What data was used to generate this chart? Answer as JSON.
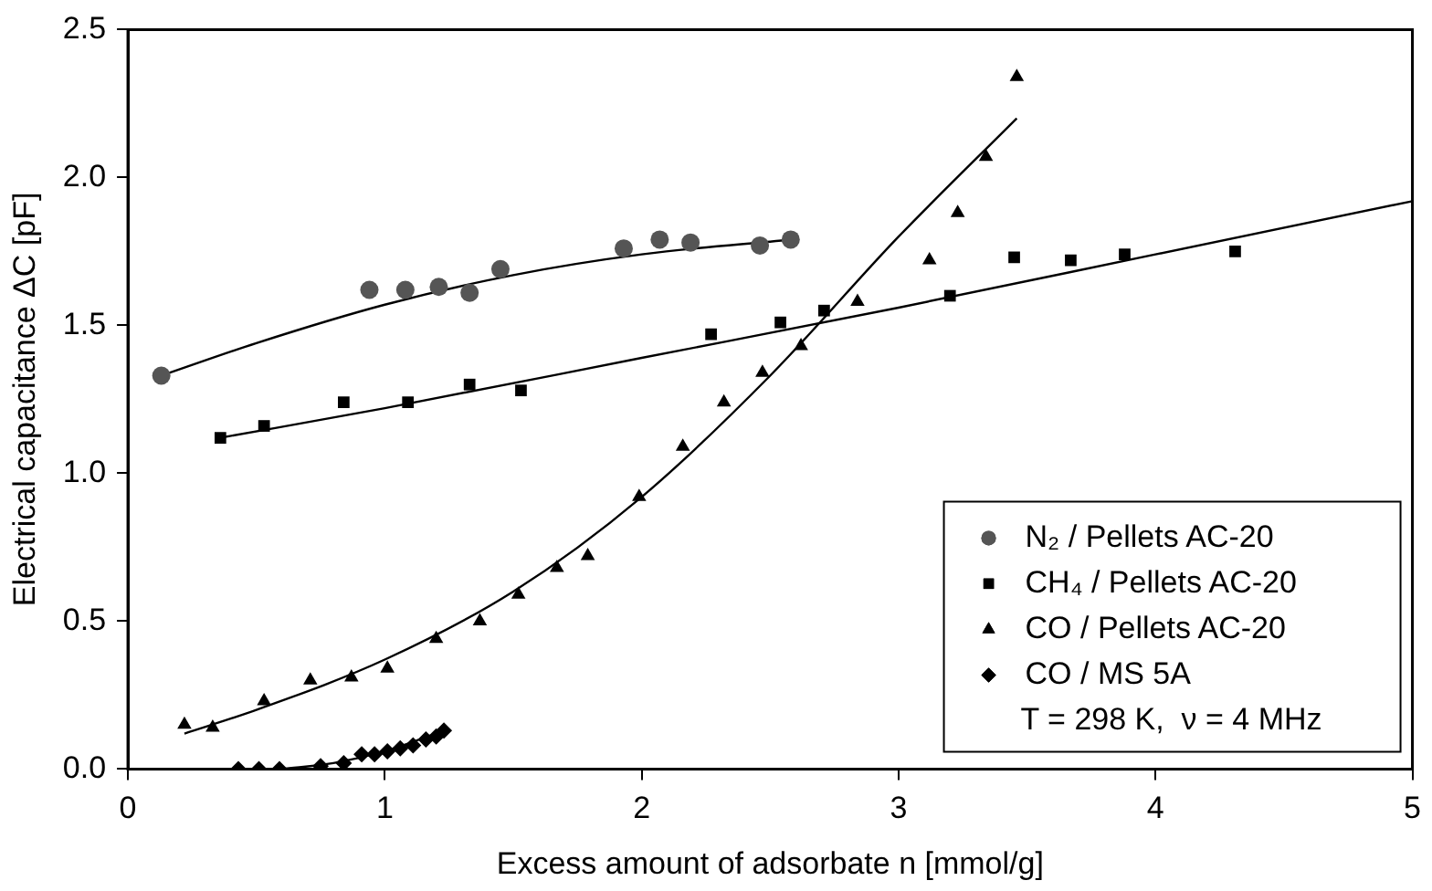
{
  "chart_data": {
    "type": "scatter",
    "xlabel": "Excess amount of adsorbate n [mmol/g]",
    "ylabel": "Electrical capacitance ΔC [pF]",
    "xlim": [
      0,
      5
    ],
    "xticks": [
      0,
      1,
      2,
      3,
      4,
      5
    ],
    "ylim": [
      0,
      2.5
    ],
    "yticks": [
      {
        "value": 0,
        "label": "0.0"
      },
      {
        "value": 0.5,
        "label": "0.5"
      },
      {
        "value": 1,
        "label": "1.0"
      },
      {
        "value": 1.5,
        "label": "1.5"
      },
      {
        "value": 2,
        "label": "2.0"
      },
      {
        "value": 2.5,
        "label": "2.5"
      }
    ],
    "grid": false,
    "legend": "bottom right",
    "annotations": [
      "T = 298 K,  ν = 4 MHz"
    ],
    "series": [
      {
        "name": "N₂ / Pellets AC-20",
        "color": "#555555",
        "marker": "circle",
        "x": [
          0.13,
          0.94,
          1.08,
          1.21,
          1.33,
          1.45,
          1.93,
          2.07,
          2.19,
          2.46,
          2.58
        ],
        "values": [
          1.33,
          1.62,
          1.62,
          1.63,
          1.61,
          1.69,
          1.76,
          1.79,
          1.78,
          1.77,
          1.79
        ]
      },
      {
        "name": "CH₄ / Pellets AC-20",
        "color": "#000000",
        "marker": "square",
        "x": [
          0.36,
          0.53,
          0.84,
          1.09,
          1.33,
          1.53,
          2.27,
          2.54,
          2.71,
          3.2,
          3.45,
          3.67,
          3.88,
          4.31
        ],
        "values": [
          1.12,
          1.16,
          1.24,
          1.24,
          1.3,
          1.28,
          1.47,
          1.51,
          1.55,
          1.6,
          1.73,
          1.72,
          1.74,
          1.75
        ]
      },
      {
        "name": "CO / Pellets AC-20",
        "color": "#000000",
        "marker": "triangle",
        "x": [
          0.22,
          0.33,
          0.53,
          0.71,
          0.87,
          1.01,
          1.2,
          1.37,
          1.52,
          1.67,
          1.79,
          1.99,
          2.16,
          2.32,
          2.47,
          2.62,
          2.84,
          3.12,
          3.23,
          3.34,
          3.46
        ],
        "values": [
          0.15,
          0.14,
          0.23,
          0.3,
          0.31,
          0.34,
          0.44,
          0.5,
          0.59,
          0.68,
          0.72,
          0.92,
          1.09,
          1.24,
          1.34,
          1.43,
          1.58,
          1.72,
          1.88,
          2.07,
          2.34
        ]
      },
      {
        "name": "CO / MS 5A",
        "color": "#000000",
        "marker": "diamond",
        "x": [
          0.43,
          0.51,
          0.59,
          0.75,
          0.84,
          0.91,
          0.96,
          1.01,
          1.06,
          1.11,
          1.16,
          1.2,
          1.23
        ],
        "values": [
          0,
          0,
          0,
          0.01,
          0.02,
          0.05,
          0.05,
          0.06,
          0.07,
          0.08,
          0.1,
          0.11,
          0.13
        ]
      },
      {
        "type": "line",
        "color": "#000000",
        "marker": "none",
        "x": [
          0.13,
          0.5,
          1,
          1.5,
          2,
          2.58
        ],
        "values": [
          1.33,
          1.44,
          1.57,
          1.67,
          1.74,
          1.79
        ]
      },
      {
        "type": "line",
        "color": "#000000",
        "marker": "none",
        "x": [
          0.36,
          1,
          2,
          3,
          4,
          5
        ],
        "values": [
          1.12,
          1.22,
          1.39,
          1.56,
          1.74,
          1.92
        ]
      },
      {
        "type": "line",
        "color": "#000000",
        "marker": "none",
        "x": [
          0.22,
          0.5,
          1,
          1.5,
          2,
          2.5,
          3,
          3.46
        ],
        "values": [
          0.12,
          0.2,
          0.37,
          0.6,
          0.92,
          1.33,
          1.8,
          2.2
        ]
      },
      {
        "type": "line",
        "color": "#000000",
        "marker": "none",
        "x": [
          0.6,
          0.8,
          1,
          1.23
        ],
        "values": [
          0,
          0.02,
          0.06,
          0.13
        ]
      }
    ]
  }
}
